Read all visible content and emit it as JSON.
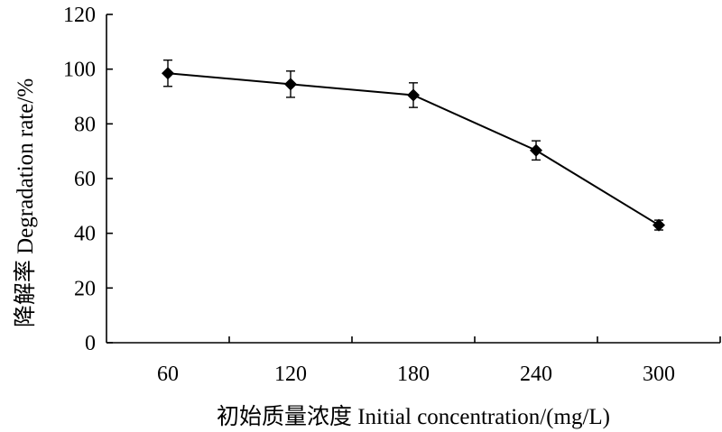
{
  "chart_data": {
    "type": "line",
    "x": [
      60,
      120,
      180,
      240,
      300
    ],
    "categories": [
      "60",
      "120",
      "180",
      "240",
      "300"
    ],
    "series": [
      {
        "values": [
          98.5,
          94.5,
          90.5,
          70.3,
          43.0
        ],
        "error": [
          4.8,
          4.8,
          4.5,
          3.5,
          1.8
        ],
        "marker": "diamond",
        "color": "#000000"
      }
    ],
    "xlabel": "初始质量浓度 Initial concentration/(mg/L)",
    "ylabel": "降解率 Degradation rate/%",
    "ylim": [
      0,
      120
    ],
    "yticks": [
      0,
      20,
      40,
      60,
      80,
      100,
      120
    ],
    "ytick_labels": [
      "0",
      "20",
      "40",
      "60",
      "80",
      "100",
      "120"
    ],
    "grid": false,
    "legend": "none"
  }
}
